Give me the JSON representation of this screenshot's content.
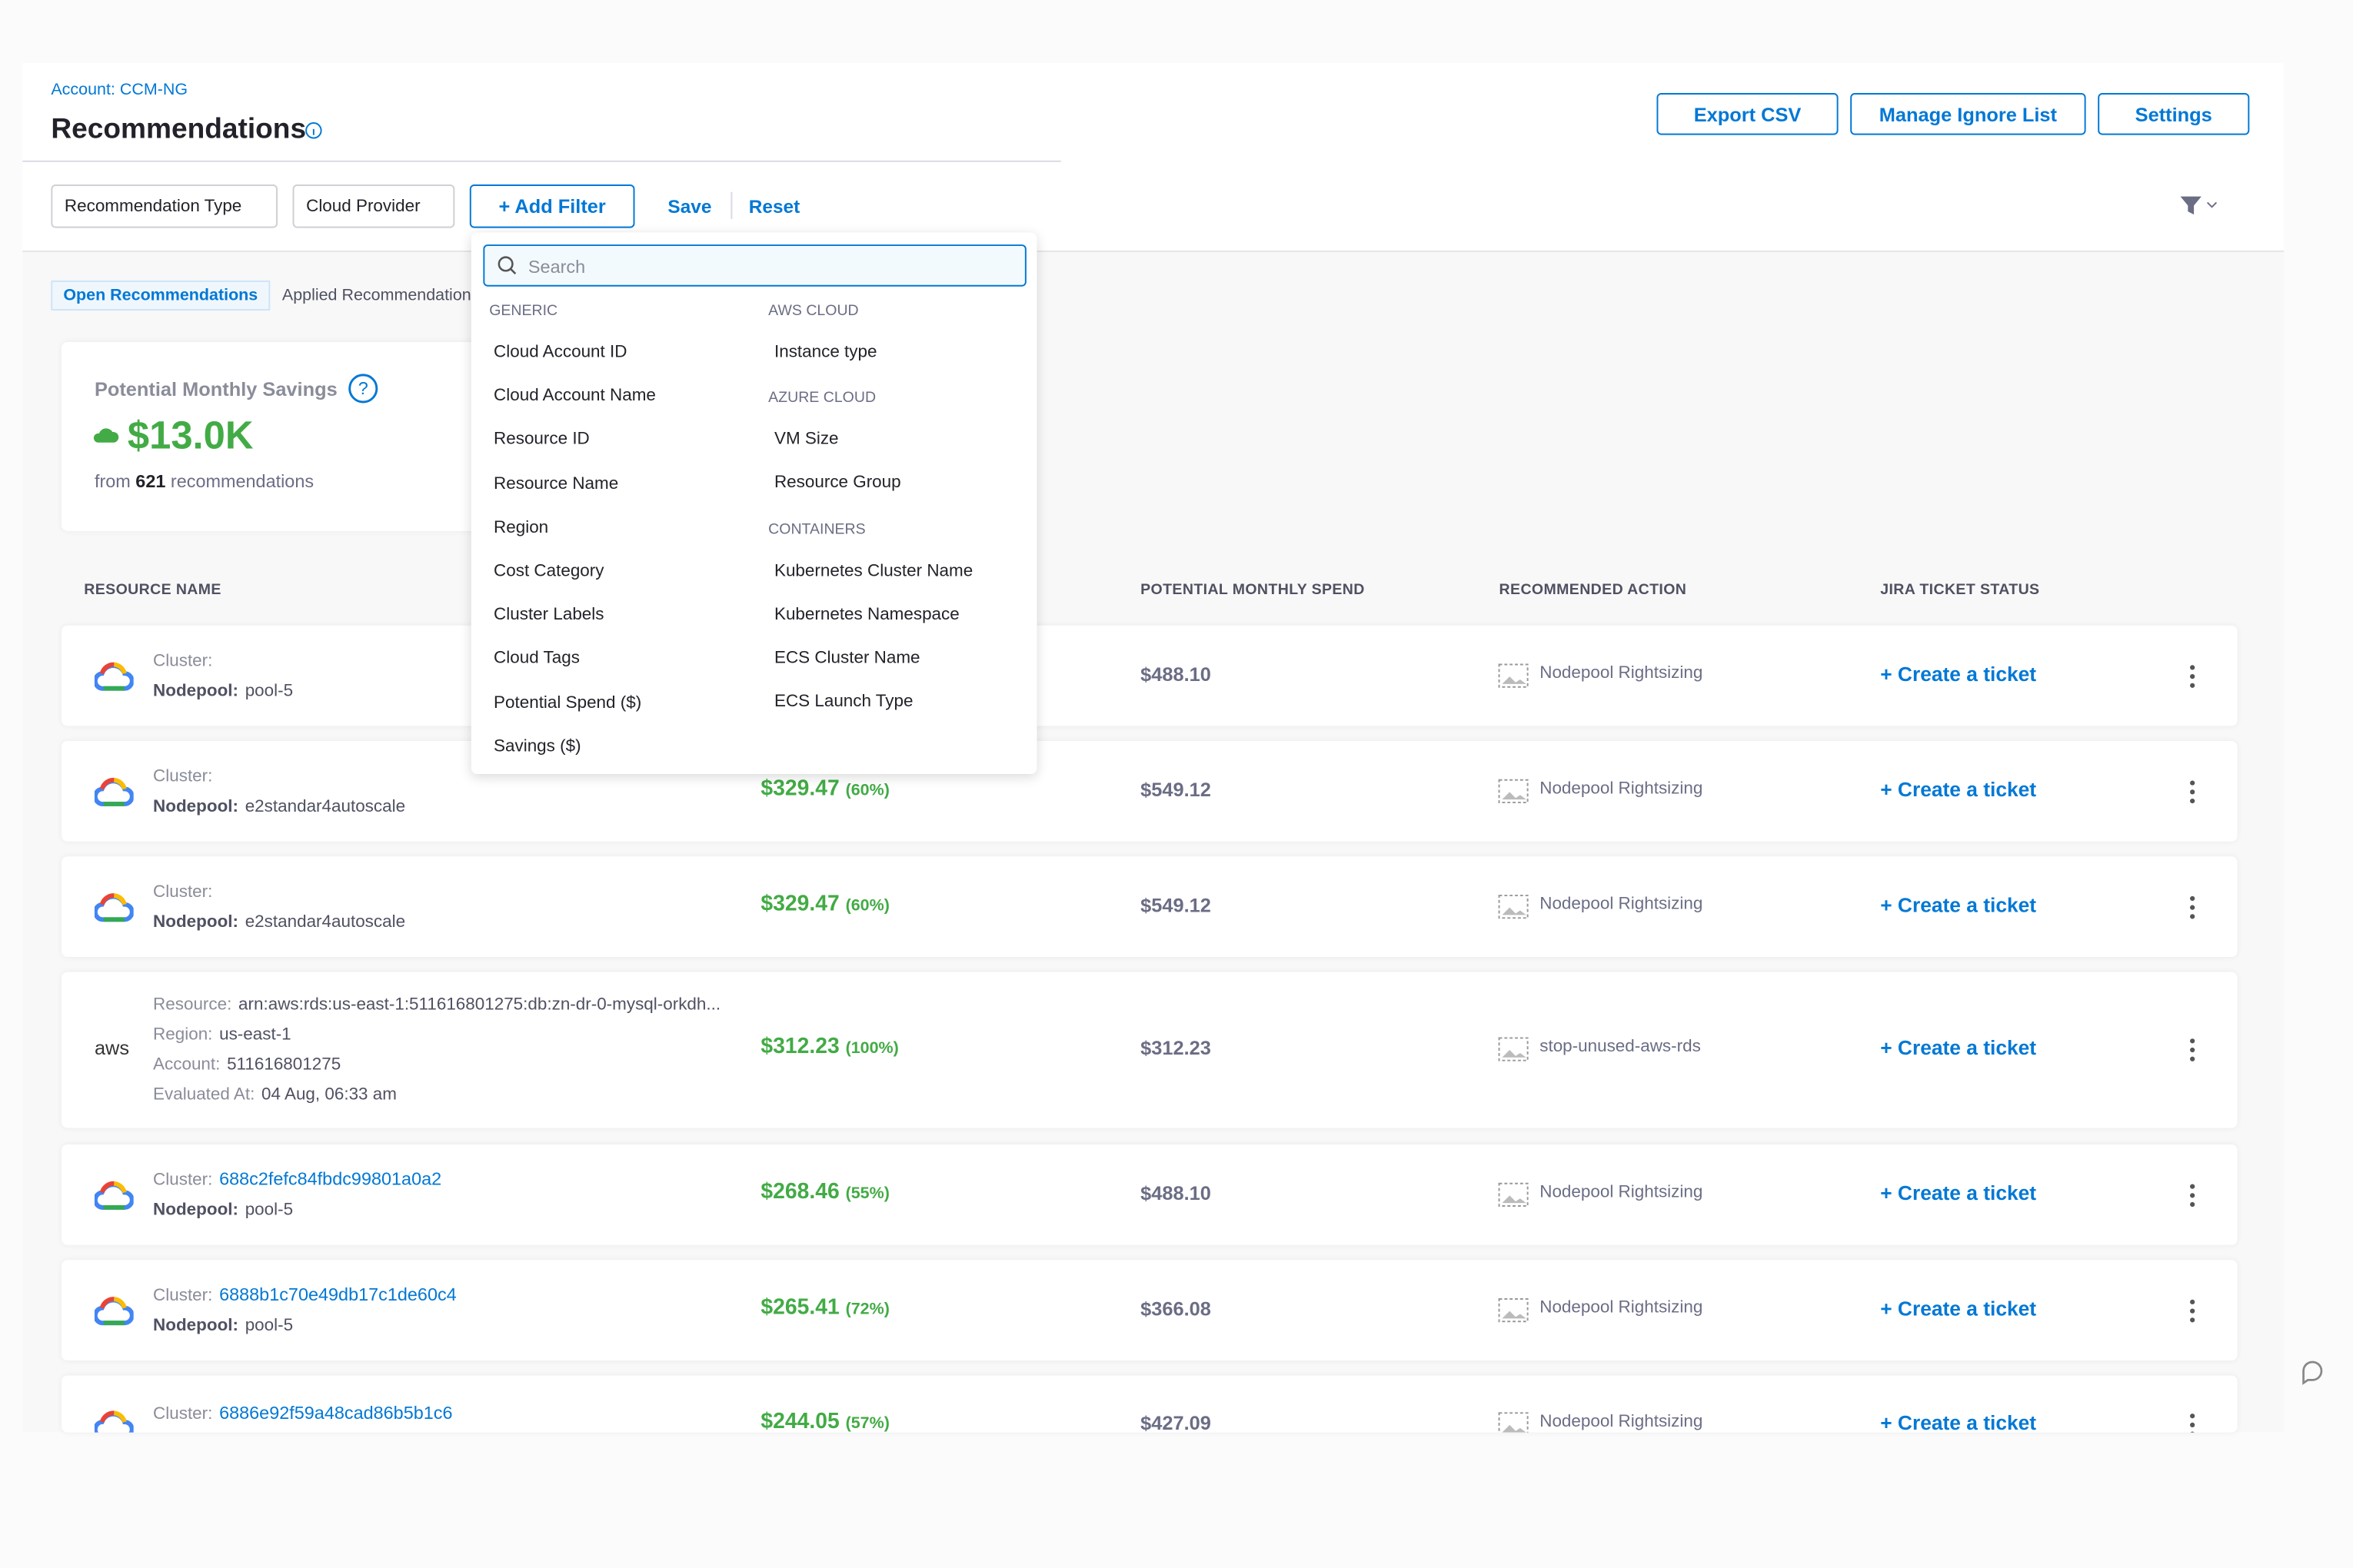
{
  "header": {
    "account": "Account: CCM-NG",
    "title": "Recommendations",
    "buttons": [
      "Export CSV",
      "Manage Ignore List",
      "Settings"
    ]
  },
  "filters": {
    "selects": [
      "Recommendation Type",
      "Cloud Provider"
    ],
    "add_filter": "+ Add Filter",
    "save": "Save",
    "reset": "Reset"
  },
  "tabs": [
    "Open Recommendations",
    "Applied Recommendations"
  ],
  "summary": {
    "label": "Potential Monthly Savings",
    "value": "$13.0K",
    "prefix": "from",
    "count": "621",
    "suffix": "recommendations"
  },
  "table": {
    "headers": [
      "RESOURCE NAME",
      "POTENTIAL MONTHLY SPEND",
      "RECOMMENDED ACTION",
      "JIRA TICKET STATUS"
    ],
    "rows": [
      {
        "fields": [
          {
            "label": "Cluster:"
          },
          {
            "label": "Nodepool:",
            "value": "pool-5"
          }
        ],
        "spend": "$488.10",
        "action": "Nodepool Rightsizing",
        "ticket": "+ Create a ticket"
      },
      {
        "fields": [
          {
            "label": "Cluster:"
          },
          {
            "label": "Nodepool:",
            "value": "e2standar4autoscale"
          }
        ],
        "savings": "$329.47",
        "percent": "(60%)",
        "spend": "$549.12",
        "action": "Nodepool Rightsizing",
        "ticket": "+ Create a ticket"
      },
      {
        "fields": [
          {
            "label": "Cluster:"
          },
          {
            "label": "Nodepool:",
            "value": "e2standar4autoscale"
          }
        ],
        "savings": "$329.47",
        "percent": "(60%)",
        "spend": "$549.12",
        "action": "Nodepool Rightsizing",
        "ticket": "+ Create a ticket"
      },
      {
        "logo_text": "aws",
        "fields": [
          {
            "label": "Resource:",
            "value": "arn:aws:rds:us-east-1:511616801275:db:zn-dr-0-mysql-orkdh..."
          },
          {
            "label": "Region:",
            "value": "us-east-1"
          },
          {
            "label": "Account:",
            "value": "511616801275"
          },
          {
            "label": "Evaluated At:",
            "value": "04 Aug, 06:33 am"
          }
        ],
        "savings": "$312.23",
        "percent": "(100%)",
        "spend": "$312.23",
        "action": "stop-unused-aws-rds",
        "ticket": "+ Create a ticket"
      },
      {
        "fields": [
          {
            "label": "Cluster:",
            "value": "688c2fefc84fbdc99801a0a2",
            "link": true
          },
          {
            "label": "Nodepool:",
            "value": "pool-5"
          }
        ],
        "savings": "$268.46",
        "percent": "(55%)",
        "spend": "$488.10",
        "action": "Nodepool Rightsizing",
        "ticket": "+ Create a ticket"
      },
      {
        "fields": [
          {
            "label": "Cluster:",
            "value": "6888b1c70e49db17c1de60c4",
            "link": true
          },
          {
            "label": "Nodepool:",
            "value": "pool-5"
          }
        ],
        "savings": "$265.41",
        "percent": "(72%)",
        "spend": "$366.08",
        "action": "Nodepool Rightsizing",
        "ticket": "+ Create a ticket"
      },
      {
        "fields": [
          {
            "label": "Cluster:",
            "value": "6886e92f59a48cad86b5b1c6",
            "link": true
          }
        ],
        "savings": "$244.05",
        "percent": "(57%)",
        "spend": "$427.09",
        "action": "Nodepool Rightsizing",
        "ticket": "+ Create a ticket"
      }
    ]
  },
  "dropdown": {
    "search_placeholder": "Search",
    "columns": [
      [
        {
          "heading": "GENERIC",
          "items": [
            "Cloud Account ID",
            "Cloud Account Name",
            "Resource ID",
            "Resource Name",
            "Region",
            "Cost Category",
            "Cluster Labels",
            "Cloud Tags",
            "Potential Spend ($)",
            "Savings ($)"
          ]
        }
      ],
      [
        {
          "heading": "AWS CLOUD",
          "items": [
            "Instance type"
          ]
        },
        {
          "heading": "AZURE CLOUD",
          "items": [
            "VM Size",
            "Resource Group"
          ]
        },
        {
          "heading": "CONTAINERS",
          "items": [
            "Kubernetes Cluster Name",
            "Kubernetes Namespace",
            "ECS Cluster Name",
            "ECS Launch Type"
          ]
        }
      ]
    ]
  }
}
